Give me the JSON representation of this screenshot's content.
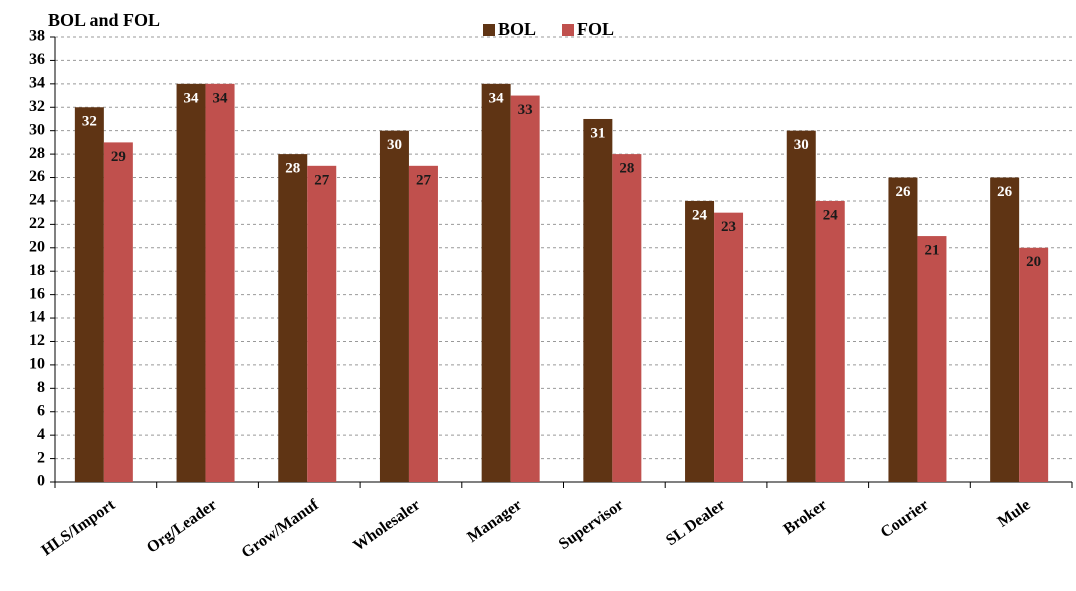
{
  "chart_data": {
    "type": "bar",
    "title": "BOL and FOL",
    "categories": [
      "HLS/Import",
      "Org/Leader",
      "Grow/Manuf",
      "Wholesaler",
      "Manager",
      "Supervisor",
      "SL Dealer",
      "Broker",
      "Courier",
      "Mule"
    ],
    "series": [
      {
        "name": "BOL",
        "color": "#5f3414",
        "values": [
          32,
          34,
          28,
          30,
          34,
          31,
          24,
          30,
          26,
          26
        ]
      },
      {
        "name": "FOL",
        "color": "#c0504d",
        "values": [
          29,
          34,
          27,
          27,
          33,
          28,
          23,
          24,
          21,
          20
        ]
      }
    ],
    "ylim": [
      0,
      38
    ],
    "yticks": [
      0,
      2,
      4,
      6,
      8,
      10,
      12,
      14,
      16,
      18,
      20,
      22,
      24,
      26,
      28,
      30,
      32,
      34,
      36,
      38
    ],
    "grid": true,
    "legend": "top"
  }
}
